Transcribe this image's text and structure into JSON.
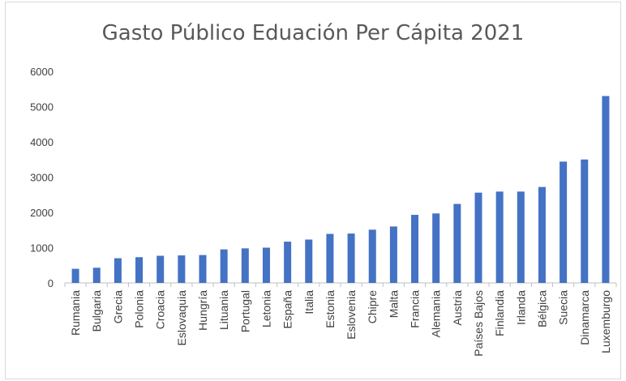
{
  "chart_data": {
    "type": "bar",
    "title": "Gasto Público Eduación Per Cápita 2021",
    "xlabel": "",
    "ylabel": "",
    "ylim": [
      0,
      6000
    ],
    "yticks": [
      "0",
      "1000",
      "2000",
      "3000",
      "4000",
      "5000",
      "6000"
    ],
    "grid": false,
    "legend": "none",
    "bar_color": "#4472c4",
    "categories": [
      "Rumania",
      "Bulgaria",
      "Grecia",
      "Polonia",
      "Croacia",
      "Eslovaquia",
      "Hungría",
      "Lituania",
      "Portugal",
      "Letonia",
      "España",
      "Italia",
      "Estonia",
      "Eslovenia",
      "Chipre",
      "Malta",
      "Francia",
      "Alemania",
      "Austria",
      "Países Bajos",
      "Finlandia",
      "Irlanda",
      "Bélgica",
      "Suecia",
      "Dinamarca",
      "Luxemburgo"
    ],
    "values": [
      400,
      430,
      700,
      730,
      770,
      780,
      790,
      950,
      980,
      1000,
      1170,
      1230,
      1390,
      1400,
      1510,
      1600,
      1930,
      1970,
      2240,
      2560,
      2590,
      2590,
      2720,
      3440,
      3500,
      5300
    ]
  }
}
